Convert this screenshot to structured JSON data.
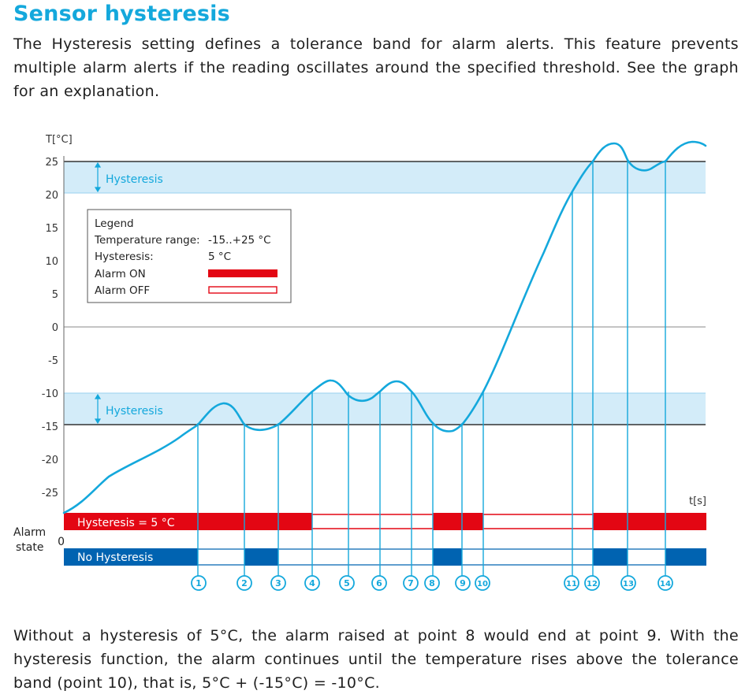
{
  "title": "Sensor hysteresis",
  "intro_text": "The Hysteresis setting defines a tolerance band for alarm alerts. This feature prevents multiple alarm alerts if the reading oscillates around the specified threshold. See the graph for an explanation.",
  "outro_text": "Without a hysteresis of 5°C, the alarm raised at point 8 would end at point 9. With the hysteresis function, the alarm continues until the temperature rises above the tolerance band (point 10), that is, 5°C + (-15°C) = -10°C.",
  "graph": {
    "y_axis_label": "T[°C]",
    "x_axis_label": "t[s]",
    "y_ticks": [
      "25",
      "20",
      "15",
      "10",
      "5",
      "0",
      "-5",
      "-10",
      "-15",
      "-20",
      "-25"
    ],
    "band_upper_label": "Hysteresis",
    "band_lower_label": "Hysteresis",
    "alarm_state_label_line1": "Alarm",
    "alarm_state_label_line2": "state",
    "alarm_zero_label": "0",
    "hysteresis_bar_label": "Hysteresis = 5 °C",
    "no_hysteresis_bar_label": "No Hysteresis",
    "points": [
      "1",
      "2",
      "3",
      "4",
      "5",
      "6",
      "7",
      "8",
      "9",
      "10",
      "11",
      "12",
      "13",
      "14"
    ],
    "legend": {
      "title": "Legend",
      "range_label": "Temperature range:",
      "range_value": "-15..+25 °C",
      "hysteresis_label": "Hysteresis:",
      "hysteresis_value": "5 °C",
      "alarm_on_label": "Alarm ON",
      "alarm_off_label": "Alarm OFF"
    },
    "colors": {
      "accent": "#14a8dc",
      "band": "#d3ecf9",
      "alarm_on_red": "#e30613",
      "no_hysteresis_blue": "#0063b1",
      "threshold_line": "#333333"
    }
  }
}
